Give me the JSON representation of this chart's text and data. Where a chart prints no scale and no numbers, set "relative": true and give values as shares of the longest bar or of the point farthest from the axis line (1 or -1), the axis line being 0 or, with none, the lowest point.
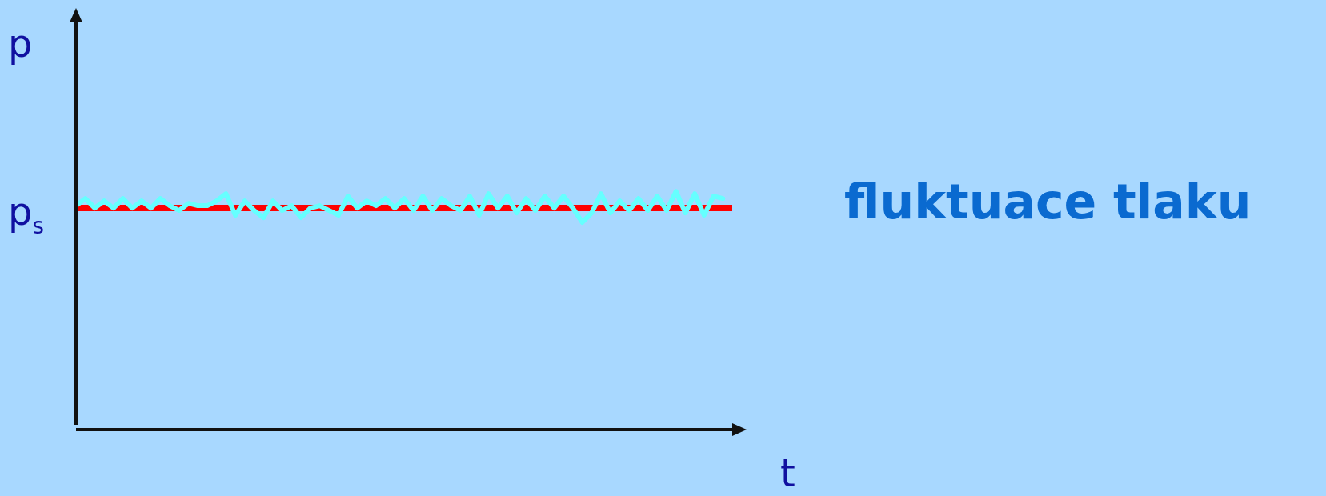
{
  "chart_data": {
    "type": "line",
    "relative": true,
    "ylabel": "p",
    "xlabel": "t",
    "categories": [
      null,
      null,
      null,
      null,
      null,
      null,
      null,
      null,
      null,
      null,
      null,
      null,
      null,
      null,
      null,
      null,
      null,
      null,
      null,
      null,
      null,
      null,
      null,
      null,
      null,
      null,
      null,
      null,
      null,
      null,
      null,
      null,
      null,
      null,
      null,
      null,
      null,
      null,
      null,
      null,
      null,
      null,
      null,
      null,
      null,
      null,
      null,
      null,
      null,
      null,
      null,
      null,
      null,
      null,
      null,
      null,
      null,
      null,
      null,
      null,
      null,
      null,
      null,
      null,
      null,
      null,
      null,
      null,
      null,
      null,
      null
    ],
    "series": [
      {
        "color": "#66ffff",
        "values": [
          0.94,
          0.97,
          0.93,
          0.96,
          0.93,
          0.97,
          0.93,
          0.96,
          0.93,
          0.97,
          0.94,
          0.92,
          0.95,
          0.94,
          0.94,
          0.96,
          0.99,
          0.9,
          0.96,
          0.92,
          0.89,
          0.96,
          0.92,
          0.94,
          0.89,
          0.93,
          0.94,
          0.92,
          0.9,
          0.98,
          0.93,
          0.96,
          0.94,
          0.97,
          0.93,
          0.97,
          0.92,
          0.98,
          0.92,
          0.97,
          0.94,
          0.92,
          0.98,
          0.9,
          0.99,
          0.93,
          0.98,
          0.91,
          0.97,
          0.92,
          0.98,
          0.93,
          0.98,
          0.93,
          0.87,
          0.91,
          0.99,
          0.91,
          0.96,
          0.92,
          0.97,
          0.92,
          0.98,
          0.92,
          1.0,
          0.91,
          0.99,
          0.9,
          0.98,
          0.97,
          null
        ]
      }
    ],
    "ref_lines": [
      {
        "axis": "y",
        "value": 0.93,
        "label": "p$_{s}$",
        "color": "#ff0000"
      }
    ],
    "annotations": [
      "fluktuace tlaku"
    ]
  }
}
